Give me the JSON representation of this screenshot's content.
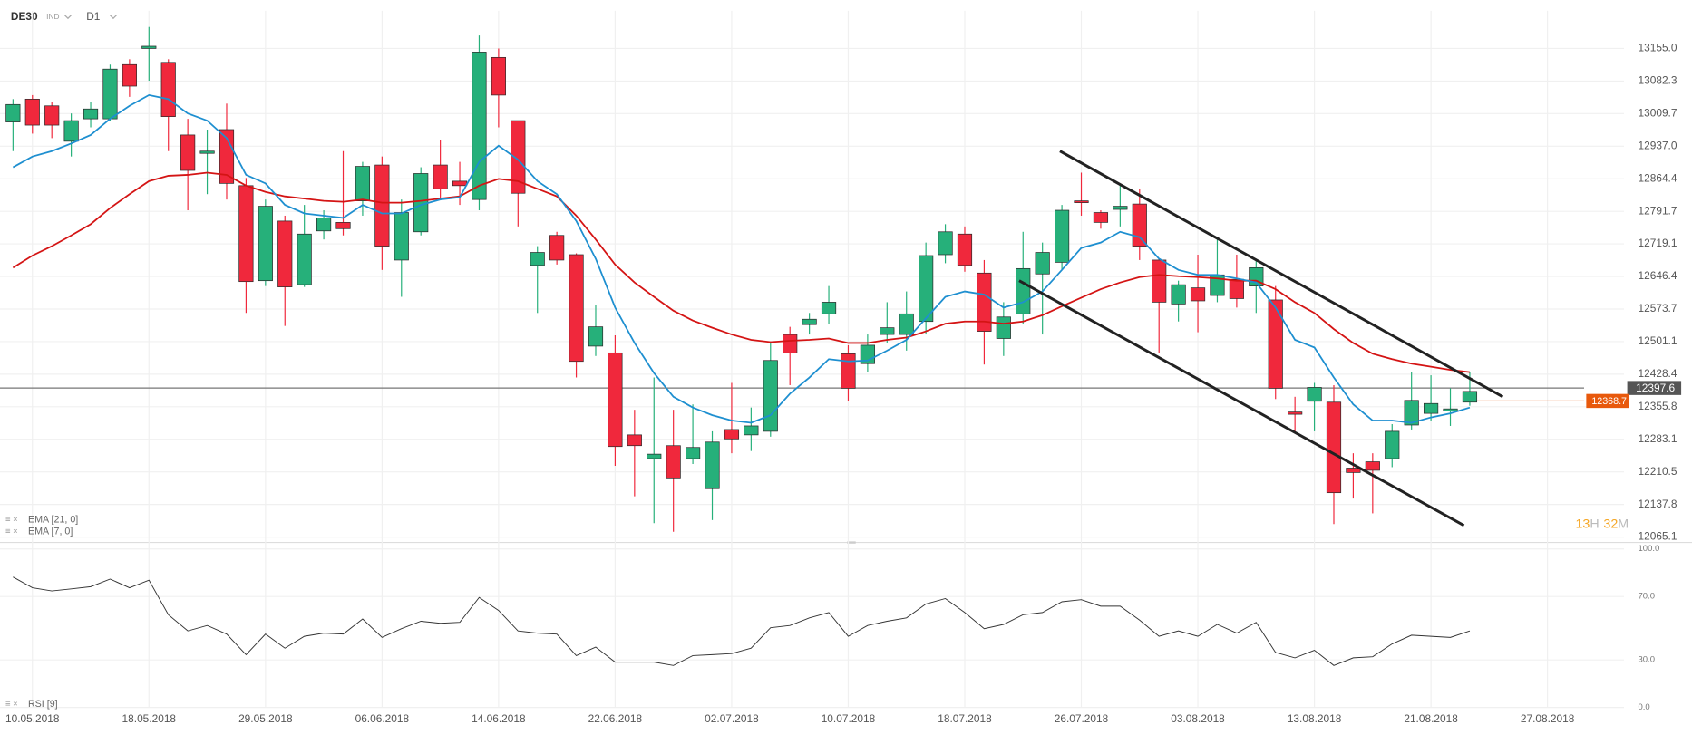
{
  "chart_data": [
    {
      "type": "candlestick",
      "title": "DE30",
      "instrument_type": "IND",
      "timeframe": "D1",
      "xlim": [
        -0.67,
        82.94
      ],
      "ylim": [
        12053,
        13239
      ],
      "xticks": [
        {
          "value": 1,
          "label": "10.05.2018"
        },
        {
          "value": 7,
          "label": "18.05.2018"
        },
        {
          "value": 13,
          "label": "29.05.2018"
        },
        {
          "value": 19,
          "label": "06.06.2018"
        },
        {
          "value": 25,
          "label": "14.06.2018"
        },
        {
          "value": 31,
          "label": "22.06.2018"
        },
        {
          "value": 37,
          "label": "02.07.2018"
        },
        {
          "value": 43,
          "label": "10.07.2018"
        },
        {
          "value": 49,
          "label": "18.07.2018"
        },
        {
          "value": 55,
          "label": "26.07.2018"
        },
        {
          "value": 61,
          "label": "03.08.2018"
        },
        {
          "value": 67,
          "label": "13.08.2018"
        },
        {
          "value": 73,
          "label": "21.08.2018"
        },
        {
          "value": 79,
          "label": "27.08.2018"
        }
      ],
      "yticks": [
        {
          "value": 13155,
          "label": "13155.0"
        },
        13082.3,
        13009.7,
        {
          "value": 12937,
          "label": "12937.0"
        },
        12864.4,
        12791.7,
        12719.1,
        12646.4,
        12573.7,
        12501.1,
        12428.4,
        12355.8,
        12283.1,
        12210.5,
        12137.8,
        12065.1
      ],
      "grid": true,
      "up_color": "#26b07a",
      "down_color": "#f0283c",
      "open": [
        12991,
        13042,
        13027,
        12948,
        12998,
        12998,
        13119,
        13155,
        13124,
        12962,
        12921,
        12974,
        12849,
        12637,
        12770,
        12628,
        12748,
        12767,
        12815,
        12895,
        12683,
        12746,
        12895,
        12859,
        12818,
        13135,
        12994,
        12671,
        12738,
        12695,
        12491,
        12476,
        12293,
        12240,
        12269,
        12240,
        12173,
        12305,
        12293,
        12301,
        12517,
        12539,
        12563,
        12474,
        12452,
        12517,
        12517,
        12546,
        12695,
        12741,
        12654,
        12508,
        12563,
        12652,
        12678,
        12815,
        12789,
        12796,
        12808,
        12683,
        12585,
        12621,
        12604,
        12640,
        12625,
        12594,
        12344,
        12368,
        12366,
        12219,
        12233,
        12240,
        12315,
        12341,
        12346,
        12366
      ],
      "high": [
        13042,
        13051,
        13035,
        13010,
        13035,
        13119,
        13131,
        13203,
        13131,
        12998,
        12974,
        13032,
        12866,
        12818,
        12782,
        12806,
        12794,
        12926,
        12902,
        12914,
        12818,
        12890,
        12950,
        12902,
        13184,
        13155,
        12994,
        12714,
        12746,
        12698,
        12582,
        12515,
        12349,
        12421,
        12349,
        12361,
        12301,
        12409,
        12354,
        12498,
        12534,
        12565,
        12625,
        12493,
        12517,
        12589,
        12613,
        12722,
        12763,
        12758,
        12683,
        12589,
        12746,
        12722,
        12806,
        12878,
        12794,
        12849,
        12842,
        12686,
        12637,
        12695,
        12729,
        12695,
        12686,
        12625,
        12378,
        12409,
        12404,
        12252,
        12252,
        12317,
        12433,
        12426,
        12397,
        12433
      ],
      "low": [
        12926,
        12965,
        12955,
        12914,
        12979,
        12994,
        13047,
        13083,
        12926,
        12794,
        12830,
        12818,
        12565,
        12625,
        12536,
        12623,
        12729,
        12738,
        12782,
        12661,
        12601,
        12738,
        12818,
        12806,
        12794,
        12979,
        12758,
        12565,
        12673,
        12421,
        12469,
        12224,
        12156,
        12096,
        12077,
        12228,
        12103,
        12252,
        12257,
        12289,
        12404,
        12517,
        12541,
        12368,
        12433,
        12498,
        12481,
        12517,
        12676,
        12657,
        12450,
        12469,
        12541,
        12517,
        12661,
        12782,
        12753,
        12758,
        12683,
        12476,
        12546,
        12522,
        12589,
        12577,
        12565,
        12373,
        12301,
        12301,
        12094,
        12151,
        12118,
        12221,
        12305,
        12325,
        12313,
        12358
      ],
      "close": [
        13030,
        12984,
        12984,
        12994,
        13020,
        13109,
        13071,
        13160,
        13003,
        12883,
        12926,
        12854,
        12635,
        12803,
        12623,
        12741,
        12777,
        12753,
        12892,
        12714,
        12789,
        12876,
        12842,
        12849,
        13147,
        13051,
        12832,
        12700,
        12683,
        12457,
        12534,
        12267,
        12269,
        12250,
        12197,
        12265,
        12277,
        12284,
        12313,
        12459,
        12476,
        12551,
        12589,
        12397,
        12493,
        12532,
        12563,
        12693,
        12746,
        12671,
        12524,
        12556,
        12664,
        12700,
        12794,
        12811,
        12767,
        12803,
        12714,
        12589,
        12628,
        12592,
        12650,
        12597,
        12666,
        12397,
        12339,
        12399,
        12164,
        12209,
        12214,
        12301,
        12370,
        12363,
        12351,
        12390
      ],
      "overlays": [
        {
          "name": "EMA [21, 0]",
          "color": "#d41414",
          "values": [
            12666,
            12693,
            12714,
            12738,
            12763,
            12799,
            12830,
            12859,
            12871,
            12873,
            12878,
            12873,
            12849,
            12835,
            12825,
            12820,
            12815,
            12813,
            12818,
            12811,
            12811,
            12815,
            12820,
            12825,
            12849,
            12864,
            12859,
            12842,
            12825,
            12782,
            12729,
            12673,
            12633,
            12601,
            12570,
            12548,
            12532,
            12517,
            12505,
            12500,
            12503,
            12505,
            12508,
            12498,
            12498,
            12505,
            12510,
            12524,
            12541,
            12546,
            12546,
            12541,
            12546,
            12560,
            12580,
            12599,
            12618,
            12633,
            12645,
            12650,
            12647,
            12645,
            12642,
            12637,
            12637,
            12618,
            12589,
            12565,
            12529,
            12498,
            12474,
            12462,
            12452,
            12445,
            12438,
            12433
          ]
        },
        {
          "name": "EMA [7, 0]",
          "color": "#1e8fd0",
          "values": [
            12890,
            12914,
            12926,
            12943,
            12962,
            12998,
            13027,
            13051,
            13042,
            13010,
            12994,
            12955,
            12873,
            12854,
            12806,
            12787,
            12782,
            12777,
            12806,
            12787,
            12787,
            12806,
            12818,
            12823,
            12902,
            12938,
            12907,
            12859,
            12830,
            12770,
            12686,
            12577,
            12498,
            12431,
            12378,
            12354,
            12337,
            12325,
            12320,
            12337,
            12385,
            12421,
            12462,
            12457,
            12459,
            12481,
            12505,
            12553,
            12601,
            12613,
            12606,
            12577,
            12589,
            12613,
            12661,
            12710,
            12722,
            12746,
            12734,
            12686,
            12661,
            12650,
            12650,
            12642,
            12633,
            12577,
            12505,
            12488,
            12421,
            12361,
            12325,
            12325,
            12320,
            12332,
            12341,
            12354
          ]
        }
      ],
      "price_lines": [
        {
          "value": 12397.6,
          "color": "#777777",
          "label_color": "#555555"
        },
        {
          "value": 12368.7,
          "color": "#e8590c",
          "label_color": "#e8590c"
        }
      ],
      "trendlines": [
        {
          "x": [
            53.9,
            76.7
          ],
          "y": [
            12926,
            12378
          ]
        },
        {
          "x": [
            51.8,
            74.7
          ],
          "y": [
            12637,
            12091
          ]
        }
      ],
      "countdown": {
        "hours": "13",
        "hours_unit": "H",
        "minutes": "32",
        "minutes_unit": "M"
      }
    },
    {
      "type": "line",
      "xlim": [
        -0.67,
        82.94
      ],
      "ylim": [
        0,
        100
      ],
      "yticks": [
        {
          "value": 100,
          "label": "100.0"
        },
        {
          "value": 70,
          "label": "70.0"
        },
        {
          "value": 30,
          "label": "30.0"
        },
        {
          "value": 0,
          "label": "0.0"
        }
      ],
      "series": [
        {
          "name": "RSI [9]",
          "color": "#333333",
          "values": [
            82.3,
            75.5,
            73.5,
            74.8,
            76.2,
            81,
            75.5,
            80.3,
            58.5,
            48.3,
            51.7,
            46.3,
            33.3,
            46.3,
            37.4,
            44.9,
            46.9,
            46.3,
            55.8,
            44.2,
            49.7,
            54.4,
            53.1,
            53.7,
            69.4,
            61.2,
            48.3,
            46.9,
            46.3,
            32.7,
            38.1,
            28.6,
            28.6,
            28.6,
            26.5,
            32.7,
            33.3,
            34,
            37.4,
            50.3,
            51.7,
            56.5,
            59.9,
            44.9,
            51.7,
            54.4,
            56.5,
            65.3,
            68.7,
            59.9,
            49.7,
            52.4,
            58.5,
            59.9,
            66.7,
            68,
            63.9,
            63.9,
            55.1,
            44.9,
            48.3,
            44.9,
            52.4,
            46.9,
            53.7,
            34.7,
            31.3,
            36.1,
            26.5,
            31.3,
            32,
            40.1,
            45.6,
            44.9,
            44.2,
            48.3
          ]
        }
      ]
    }
  ]
}
